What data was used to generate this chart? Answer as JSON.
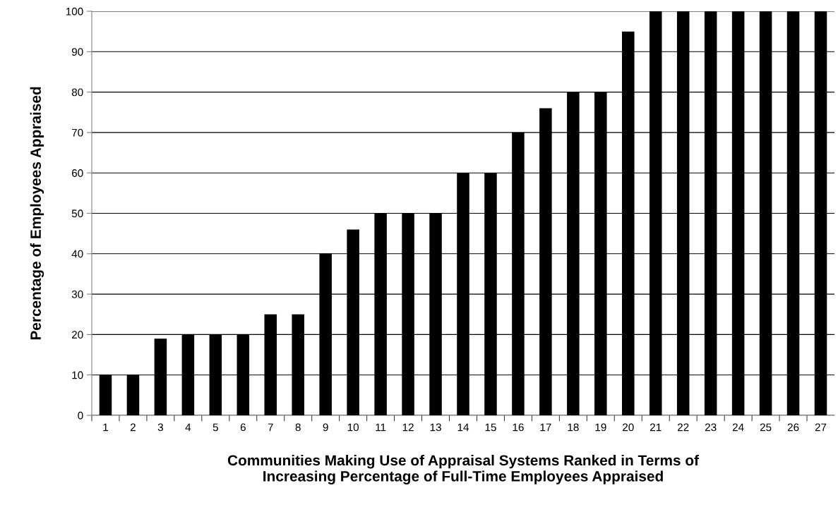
{
  "chart_data": {
    "type": "bar",
    "xlabel": "Communities Making Use of Appraisal Systems Ranked in Terms of\nIncreasing Percentage of Full-Time Employees Appraised",
    "ylabel": "Percentage of Employees Appraised",
    "categories": [
      "1",
      "2",
      "3",
      "4",
      "5",
      "6",
      "7",
      "8",
      "9",
      "10",
      "11",
      "12",
      "13",
      "14",
      "15",
      "16",
      "17",
      "18",
      "19",
      "20",
      "21",
      "22",
      "23",
      "24",
      "25",
      "26",
      "27"
    ],
    "values": [
      10,
      10,
      19,
      20,
      20,
      20,
      25,
      25,
      40,
      46,
      50,
      50,
      50,
      60,
      60,
      70,
      76,
      80,
      80,
      95,
      100,
      100,
      100,
      100,
      100,
      100,
      100
    ],
    "color": "#000000",
    "ylim": [
      0,
      100
    ],
    "yticks": [
      0,
      10,
      20,
      30,
      40,
      50,
      60,
      70,
      80,
      90,
      100
    ],
    "grid": "y",
    "legend": false
  }
}
